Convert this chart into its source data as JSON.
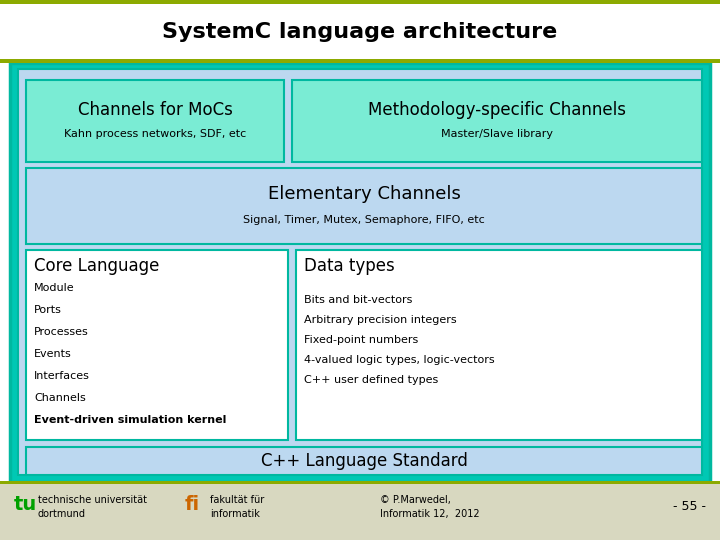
{
  "title": "SystemC language architecture",
  "title_fontsize": 16,
  "title_fontweight": "bold",
  "bg_color": "#ffffff",
  "teal_outer": "#00b8a0",
  "teal_inner": "#00c8b4",
  "light_blue": "#bcd8f0",
  "green_box": "#7aecd4",
  "white_box": "#ffffff",
  "olive_line": "#8caa00",
  "footer_bg": "#d8d8c0",
  "box1_title": "Channels for MoCs",
  "box1_sub": "Kahn process networks, SDF, etc",
  "box2_title": "Methodology-specific Channels",
  "box2_sub": "Master/Slave library",
  "elem_title": "Elementary Channels",
  "elem_sub": "Signal, Timer, Mutex, Semaphore, FIFO, etc",
  "core_title": "Core Language",
  "core_items": [
    "Module",
    "Ports",
    "Processes",
    "Events",
    "Interfaces",
    "Channels",
    "Event-driven simulation kernel"
  ],
  "data_title": "Data types",
  "data_items": [
    "Bits and bit-vectors",
    "Arbitrary precision integers",
    "Fixed-point numbers",
    "4-valued logic types, logic-vectors",
    "C++ user defined types"
  ],
  "cpp_title": "C++ Language Standard",
  "footer_left1": "technische universität",
  "footer_left2": "dortmund",
  "footer_mid1": "fakultät für",
  "footer_mid2": "informatik",
  "footer_copy1": "© P.Marwedel,",
  "footer_copy2": "Informatik 12,  2012",
  "footer_page": "- 55 -"
}
